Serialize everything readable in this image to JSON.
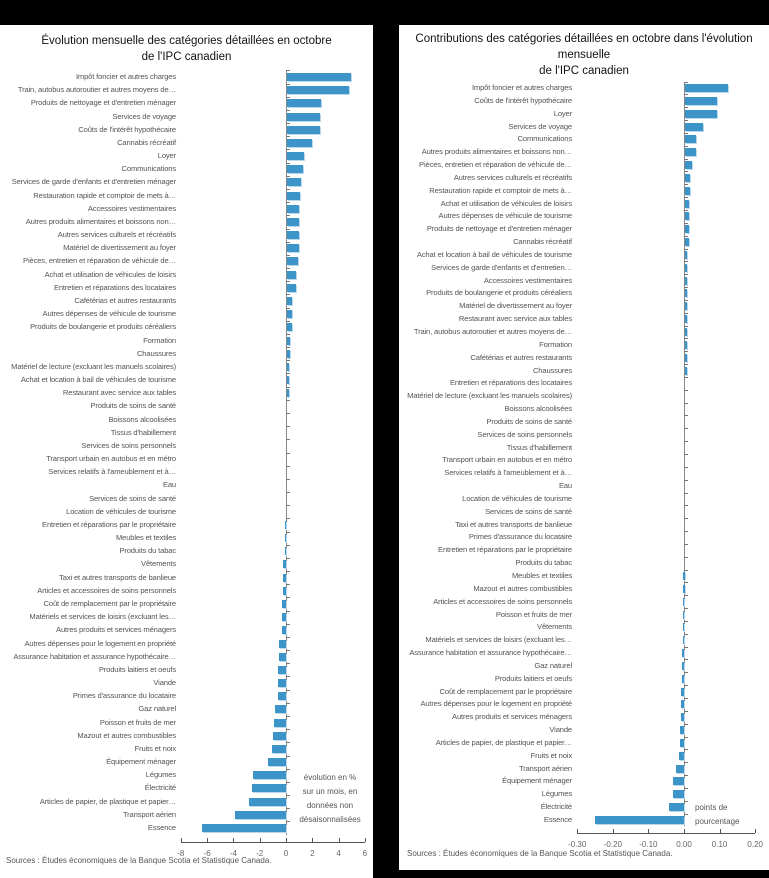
{
  "left_panel": {
    "title_line1": "Évolution mensuelle des catégories détaillées en octobre",
    "title_line2": "de l'IPC canadien",
    "unit_note": [
      "évolution en %",
      "sur un mois, en",
      "données non",
      "désaisonnalisées"
    ],
    "source": "Sources : Études économiques de la Banque Scotia et Statistique Canada."
  },
  "right_panel": {
    "title_line1": "Contributions des catégories détaillées en octobre dans l'évolution mensuelle",
    "title_line2": "de l'IPC canadien",
    "unit_note": [
      "points de",
      "pourcentage"
    ],
    "source": "Sources : Études économiques de la Banque Scotia et Statistique Canada."
  },
  "colors": {
    "bar": "#3c94c8",
    "background": "#ffffff",
    "frame": "#000000"
  },
  "chart_data": [
    {
      "type": "bar",
      "orientation": "horizontal",
      "title": "Évolution mensuelle des catégories détaillées en octobre de l'IPC canadien",
      "xlabel": "évolution en % sur un mois, en données non désaisonnalisées",
      "ylabel": "",
      "xlim": [
        -8,
        6
      ],
      "xticks": [
        -8,
        -6,
        -4,
        -2,
        0,
        2,
        4,
        6
      ],
      "grid": false,
      "legend": null,
      "categories": [
        "Impôt foncier et autres charges",
        "Train, autobus autoroutier et autres moyens de…",
        "Produits de nettoyage et d'entretien ménager",
        "Services de voyage",
        "Coûts de l'intérêt hypothécaire",
        "Cannabis récréatif",
        "Loyer",
        "Communications",
        "Services de garde d'enfants et d'entretien ménager",
        "Restauration rapide et comptoir de mets à…",
        "Accessoires vestimentaires",
        "Autres produits alimentaires et boissons non…",
        "Autres services culturels et récréatifs",
        "Matériel de divertissement au foyer",
        "Pièces, entretien et réparation de véhicule de…",
        "Achat et utilisation de véhicules de loisirs",
        "Entretien et réparations des locataires",
        "Cafétérias et autres restaurants",
        "Autres dépenses de véhicule de tourisme",
        "Produits de boulangerie et produits céréaliers",
        "Formation",
        "Chaussures",
        "Matériel de lecture (excluant les manuels scolaires)",
        "Achat et location à bail de véhicules de tourisme",
        "Restaurant avec service aux tables",
        "Produits de soins de santé",
        "Boissons alcoolisées",
        "Tissus d'habillement",
        "Services de soins personnels",
        "Transport urbain en autobus et en métro",
        "Services relatifs à l'ameublement et à…",
        "Eau",
        "Services de soins de santé",
        "Location de véhicules de tourisme",
        "Entretien et réparations par le propriétaire",
        "Meubles et textiles",
        "Produits du tabac",
        "Vêtements",
        "Taxi et autres transports de banlieue",
        "Articles et accessoires de soins personnels",
        "Coût de remplacement par le propriétaire",
        "Matériels et services de loisirs (excluant les…",
        "Autres produits et services ménagers",
        "Autres dépenses pour le logement en propriété",
        "Assurance habitation et assurance hypothécaire…",
        "Produits laitiers et oeufs",
        "Viande",
        "Primes d'assurance du locataire",
        "Gaz naturel",
        "Poisson et fruits de mer",
        "Mazout et autres combustibles",
        "Fruits et noix",
        "Équipement ménager",
        "Légumes",
        "Électricité",
        "Articles de papier, de plastique et papier…",
        "Transport aérien",
        "Essence"
      ],
      "values": [
        4.9,
        4.7,
        2.6,
        2.5,
        2.5,
        1.9,
        1.3,
        1.2,
        1.1,
        1.0,
        0.9,
        0.9,
        0.9,
        0.9,
        0.8,
        0.7,
        0.7,
        0.4,
        0.4,
        0.4,
        0.2,
        0.2,
        0.1,
        0.1,
        0.1,
        0.0,
        0.0,
        0.0,
        0.0,
        0.0,
        0.0,
        0.0,
        0.0,
        0.0,
        -0.1,
        -0.1,
        -0.1,
        -0.2,
        -0.2,
        -0.2,
        -0.3,
        -0.3,
        -0.3,
        -0.5,
        -0.5,
        -0.6,
        -0.6,
        -0.6,
        -0.8,
        -0.9,
        -1.0,
        -1.1,
        -1.4,
        -2.5,
        -2.6,
        -2.8,
        -3.9,
        -6.4
      ]
    },
    {
      "type": "bar",
      "orientation": "horizontal",
      "title": "Contributions des catégories détaillées en octobre dans l'évolution mensuelle de l'IPC canadien",
      "xlabel": "points de pourcentage",
      "ylabel": "",
      "xlim": [
        -0.3,
        0.2
      ],
      "xticks": [
        "-0.30",
        "-0.20",
        "-0.10",
        "0.00",
        "0.10",
        "0.20"
      ],
      "grid": false,
      "legend": null,
      "categories": [
        "Impôt foncier et autres charges",
        "Coûts de l'intérêt hypothécaire",
        "Loyer",
        "Services de voyage",
        "Communications",
        "Autres produits alimentaires et boissons non…",
        "Pièces, entretien et réparation de véhicule de…",
        "Autres services culturels et récréatifs",
        "Restauration rapide et comptoir de mets à…",
        "Achat et utilisation de véhicules de loisirs",
        "Autres dépenses de véhicule de tourisme",
        "Produits de nettoyage et d'entretien ménager",
        "Cannabis récréatif",
        "Achat et location à bail de véhicules de tourisme",
        "Services de garde d'enfants et d'entretien…",
        "Accessoires vestimentaires",
        "Produits de boulangerie et produits céréaliers",
        "Matériel de divertissement au foyer",
        "Restaurant avec service aux tables",
        "Train, autobus autoroutier et autres moyens de…",
        "Formation",
        "Cafétérias et autres restaurants",
        "Chaussures",
        "Entretien et réparations des locataires",
        "Matériel de lecture (excluant les manuels scolaires)",
        "Boissons alcoolisées",
        "Produits de soins de santé",
        "Services de soins personnels",
        "Tissus d'habillement",
        "Transport urbain en autobus et en métro",
        "Services relatifs à l'ameublement et à…",
        "Eau",
        "Location de véhicules de tourisme",
        "Services de soins de santé",
        "Taxi et autres transports de banlieue",
        "Primes d'assurance du locataire",
        "Entretien et réparations par le propriétaire",
        "Produits du tabac",
        "Meubles et textiles",
        "Mazout et autres combustibles",
        "Articles et accessoires de soins personnels",
        "Poisson et fruits de mer",
        "Vêtements",
        "Matériels et services de loisirs (excluant les…",
        "Assurance habitation et assurance hypothécaire…",
        "Gaz naturel",
        "Produits laitiers et oeufs",
        "Coût de remplacement par le propriétaire",
        "Autres dépenses pour le logement en propriété",
        "Autres produits et services ménagers",
        "Viande",
        "Articles de papier, de plastique et papier…",
        "Fruits et noix",
        "Transport aérien",
        "Équipement ménager",
        "Légumes",
        "Électricité",
        "Essence"
      ],
      "values": [
        0.12,
        0.09,
        0.09,
        0.05,
        0.03,
        0.03,
        0.02,
        0.015,
        0.015,
        0.01,
        0.01,
        0.01,
        0.01,
        0.007,
        0.007,
        0.007,
        0.006,
        0.006,
        0.004,
        0.004,
        0.003,
        0.003,
        0.001,
        0.0,
        0.0,
        0.0,
        0.0,
        0.0,
        0.0,
        0.0,
        0.0,
        0.0,
        0.0,
        0.0,
        0.0,
        0.0,
        0.0,
        0.0,
        -0.002,
        -0.002,
        -0.003,
        -0.003,
        -0.004,
        -0.004,
        -0.005,
        -0.005,
        -0.007,
        -0.008,
        -0.009,
        -0.009,
        -0.012,
        -0.012,
        -0.013,
        -0.022,
        -0.03,
        -0.03,
        -0.042,
        -0.25
      ]
    }
  ]
}
